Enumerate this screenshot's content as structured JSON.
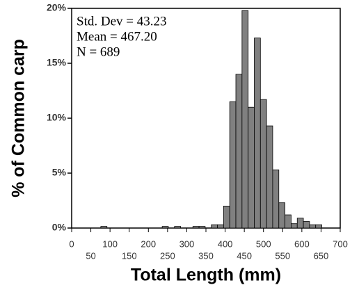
{
  "chart_data": {
    "type": "histogram",
    "x_label": "Total Length (mm)",
    "y_label": "% of Common carp",
    "annotations": [
      "Std.  Dev = 43.23",
      "Mean = 467.20",
      "N = 689"
    ],
    "bins": [
      60,
      76,
      92,
      108,
      124,
      140,
      156,
      172,
      188,
      204,
      220,
      236,
      252,
      268,
      284,
      300,
      316,
      332,
      348,
      364,
      380,
      396,
      412,
      428,
      444,
      460,
      476,
      492,
      508,
      524,
      540,
      556,
      572,
      588,
      604,
      620,
      636,
      652
    ],
    "values": [
      0,
      0.15,
      0,
      0,
      0,
      0,
      0,
      0,
      0,
      0,
      0,
      0.15,
      0,
      0.15,
      0,
      0,
      0.15,
      0.15,
      0,
      0.3,
      0.3,
      2.0,
      11.5,
      14,
      19.8,
      11,
      17.3,
      11.7,
      9.3,
      5.3,
      2.3,
      1.2,
      0.4,
      0.9,
      0.6,
      0.3,
      0.3
    ],
    "color": "#808080",
    "xlim": [
      0,
      700
    ],
    "xticks": [
      0,
      50,
      100,
      150,
      200,
      250,
      300,
      350,
      400,
      450,
      500,
      550,
      600,
      650,
      700
    ],
    "ylim": [
      0,
      20
    ],
    "yticks": [
      {
        "value": 0,
        "label": "0%"
      },
      {
        "value": 5,
        "label": "5%"
      },
      {
        "value": 10,
        "label": "10%"
      },
      {
        "value": 15,
        "label": "15%"
      },
      {
        "value": 20,
        "label": "20%"
      }
    ]
  }
}
